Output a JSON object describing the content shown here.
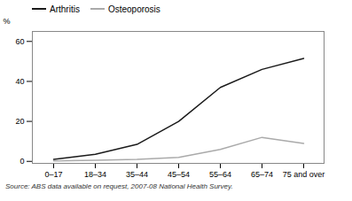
{
  "chart_data": {
    "type": "line",
    "categories": [
      "0–17",
      "18–34",
      "35–44",
      "45–54",
      "55–64",
      "65–74",
      "75 and over"
    ],
    "series": [
      {
        "name": "Arthritis",
        "color": "#1a1a1a",
        "values": [
          1.0,
          3.5,
          8.5,
          20.0,
          37.0,
          46.0,
          51.5
        ]
      },
      {
        "name": "Osteoporosis",
        "color": "#aaaaaa",
        "values": [
          0.2,
          0.5,
          1.0,
          2.0,
          6.0,
          12.0,
          9.0
        ]
      }
    ],
    "ylabel": "%",
    "ylim": [
      -1,
      65
    ],
    "yticks": [
      0,
      20,
      40,
      60
    ],
    "grid": false,
    "legend": "upper left",
    "caption": "Source: ABS data available on request,  2007-08 National Health Survey."
  }
}
